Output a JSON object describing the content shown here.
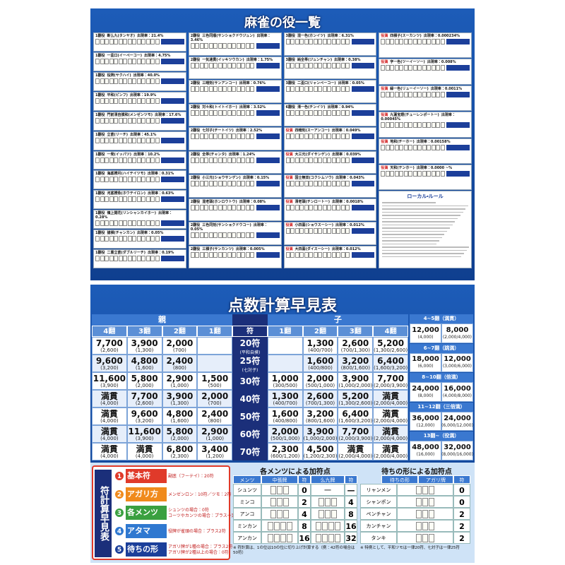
{
  "yaku_sheet": {
    "title": "麻雀の役一覧",
    "columns": [
      [
        {
          "han": "1翻役",
          "name": "断么九(タンヤオ)",
          "rate": "出現率：21.4%"
        },
        {
          "han": "1翻役",
          "name": "一盃口(イーペーコー)",
          "rate": "出現率：4.75%"
        },
        {
          "han": "1翻役",
          "name": "役牌(ヤクハイ)",
          "rate": "出現率：40.0%"
        },
        {
          "han": "1翻役",
          "name": "平和(ピンフ)",
          "rate": "出現率：19.9%"
        },
        {
          "han": "1翻役",
          "name": "門前清自摸和(メンゼンツモ)",
          "rate": "出現率：17.6%"
        },
        {
          "han": "1翻役",
          "name": "立直(リーチ)",
          "rate": "出現率：45.1%"
        },
        {
          "han": "1翻役",
          "name": "一発(イッパツ)",
          "rate": "出現率：10.2%"
        },
        {
          "han": "1翻役",
          "name": "海底撈月(ハイテイツモ)",
          "rate": "出現率：0.31%"
        },
        {
          "han": "1翻役",
          "name": "河底撈魚(ホウテイロン)",
          "rate": "出現率：0.63%"
        },
        {
          "han": "1翻役",
          "name": "嶺上開花(リンシャンカイホー)",
          "rate": "出現率：0.28%"
        },
        {
          "han": "1翻役",
          "name": "搶槓(チャンカン)",
          "rate": "出現率：0.05%"
        },
        {
          "han": "1翻役",
          "name": "二重立直(ダブルリーチ)",
          "rate": "出現率：0.19%"
        }
      ],
      [
        {
          "han": "2翻役",
          "name": "三色同順(サンショクドウジュン)",
          "rate": "出現率：3.46%"
        },
        {
          "han": "2翻役",
          "name": "一気通貫(イッキツウカン)",
          "rate": "出現率：1.75%"
        },
        {
          "han": "2翻役",
          "name": "三暗刻(サンアンコー)",
          "rate": "出現率：0.76%"
        },
        {
          "han": "2翻役",
          "name": "対々和(トイトイホー)",
          "rate": "出現率：3.52%"
        },
        {
          "han": "2翻役",
          "name": "七対子(チートイツ)",
          "rate": "出現率：2.52%"
        },
        {
          "han": "2翻役",
          "name": "全帯(チャンタ)",
          "rate": "出現率：1.24%"
        },
        {
          "han": "2翻役",
          "name": "小三元(ショウサンゲン)",
          "rate": "出現率：0.15%"
        },
        {
          "han": "2翻役",
          "name": "混老頭(ホンロウトウ)",
          "rate": "出現率：0.08%"
        },
        {
          "han": "2翻役",
          "name": "三色同刻(サンショクドウコー)",
          "rate": "出現率：0.05%"
        },
        {
          "han": "2翻役",
          "name": "三槓子(サンカンツ)",
          "rate": "出現率：0.005%"
        }
      ],
      [
        {
          "han": "3翻役",
          "name": "混一色(ホンイツ)",
          "rate": "出現率：6.31%"
        },
        {
          "han": "3翻役",
          "name": "純全帯(ジュンチャン)",
          "rate": "出現率：0.38%"
        },
        {
          "han": "3翻役",
          "name": "二盃口(リャンペーコー)",
          "rate": "出現率：0.05%"
        },
        {
          "han": "6翻役",
          "name": "清一色(チンイツ)",
          "rate": "出現率：0.94%"
        },
        {
          "han": "役満",
          "name": "四暗刻(スーアンコー)",
          "rate": "出現率：0.049%"
        },
        {
          "han": "役満",
          "name": "大三元(ダイサンゲン)",
          "rate": "出現率：0.039%"
        },
        {
          "han": "役満",
          "name": "国士無双(コクシムソウ)",
          "rate": "出現率：0.043%"
        },
        {
          "han": "役満",
          "name": "清老頭(チンロートー)",
          "rate": "出現率：0.0018%"
        },
        {
          "han": "役満",
          "name": "小四喜(ショウスーシー)",
          "rate": "出現率：0.012%"
        },
        {
          "han": "役満",
          "name": "大四喜(ダイスーシー)",
          "rate": "出現率：0.012%"
        }
      ],
      [
        {
          "han": "役満",
          "name": "四槓子(スーカンツ)",
          "rate": "出現率：0.000234%"
        },
        {
          "han": "役満",
          "name": "字一色(ツーイーソー)",
          "rate": "出現率：0.008%"
        },
        {
          "han": "役満",
          "name": "緑一色(リューイーソー)",
          "rate": "出現率：0.0011%"
        },
        {
          "han": "役満",
          "name": "九蓮宝燈(チューレンポートー)",
          "rate": "出現率：0.00045%"
        },
        {
          "han": "役満",
          "name": "地和(チーホー)",
          "rate": "出現率：0.00158%"
        },
        {
          "han": "役満",
          "name": "天和(テンホー)",
          "rate": "出現率：0.0000 ~%"
        }
      ]
    ],
    "local_rule_title": "ローカル・ルール"
  },
  "score_sheet": {
    "title": "点数計算早見表",
    "dealer": "親",
    "non_dealer": "子",
    "fu_header": "符",
    "han_headers_dealer": [
      "4翻",
      "3翻",
      "2翻",
      "1翻"
    ],
    "han_headers_non_dealer": [
      "1翻",
      "2翻",
      "3翻",
      "4翻"
    ],
    "rows": [
      {
        "fu": "20符",
        "fu_note": "(平和自摸)",
        "dealer": [
          {
            "score": "7,700",
            "detail": "(2,600)"
          },
          {
            "score": "3,900",
            "detail": "(1,300)"
          },
          {
            "score": "2,000",
            "detail": "(700)"
          },
          null
        ],
        "non_dealer": [
          null,
          {
            "score": "1,300",
            "detail": "(400/700)"
          },
          {
            "score": "2,600",
            "detail": "(700/1,300)"
          },
          {
            "score": "5,200",
            "detail": "(1,300/2,600)"
          }
        ]
      },
      {
        "fu": "25符",
        "fu_note": "(七対子)",
        "dealer": [
          {
            "score": "9,600",
            "detail": "(3,200)"
          },
          {
            "score": "4,800",
            "detail": "(1,600)"
          },
          {
            "score": "2,400",
            "detail": "(800)"
          },
          null
        ],
        "non_dealer": [
          null,
          {
            "score": "1,600",
            "detail": "(400/800)"
          },
          {
            "score": "3,200",
            "detail": "(800/1,600)"
          },
          {
            "score": "6,400",
            "detail": "(1,600/3,200)"
          }
        ]
      },
      {
        "fu": "30符",
        "dealer": [
          {
            "score": "11,600",
            "detail": "(3,900)"
          },
          {
            "score": "5,800",
            "detail": "(2,000)"
          },
          {
            "score": "2,900",
            "detail": "(1,000)"
          },
          {
            "score": "1,500",
            "detail": "(500)"
          }
        ],
        "non_dealer": [
          {
            "score": "1,000",
            "detail": "(300/500)"
          },
          {
            "score": "2,000",
            "detail": "(500/1,000)"
          },
          {
            "score": "3,900",
            "detail": "(1,000/2,000)"
          },
          {
            "score": "7,700",
            "detail": "(2,000/3,900)"
          }
        ]
      },
      {
        "fu": "40符",
        "dealer": [
          {
            "score": "満貫",
            "detail": "(4,000)"
          },
          {
            "score": "7,700",
            "detail": "(2,600)"
          },
          {
            "score": "3,900",
            "detail": "(1,300)"
          },
          {
            "score": "2,000",
            "detail": "(700)"
          }
        ],
        "non_dealer": [
          {
            "score": "1,300",
            "detail": "(400/700)"
          },
          {
            "score": "2,600",
            "detail": "(700/1,300)"
          },
          {
            "score": "5,200",
            "detail": "(1,300/2,600)"
          },
          {
            "score": "満貫",
            "detail": "(2,000/4,000)"
          }
        ]
      },
      {
        "fu": "50符",
        "dealer": [
          {
            "score": "満貫",
            "detail": "(4,000)"
          },
          {
            "score": "9,600",
            "detail": "(3,200)"
          },
          {
            "score": "4,800",
            "detail": "(1,600)"
          },
          {
            "score": "2,400",
            "detail": "(800)"
          }
        ],
        "non_dealer": [
          {
            "score": "1,600",
            "detail": "(400/800)"
          },
          {
            "score": "3,200",
            "detail": "(800/1,600)"
          },
          {
            "score": "6,400",
            "detail": "(1,600/3,200)"
          },
          {
            "score": "満貫",
            "detail": "(2,000/4,000)"
          }
        ]
      },
      {
        "fu": "60符",
        "dealer": [
          {
            "score": "満貫",
            "detail": "(4,000)"
          },
          {
            "score": "11,600",
            "detail": "(3,900)"
          },
          {
            "score": "5,800",
            "detail": "(2,000)"
          },
          {
            "score": "2,900",
            "detail": "(1,000)"
          }
        ],
        "non_dealer": [
          {
            "score": "2,000",
            "detail": "(500/1,000)"
          },
          {
            "score": "3,900",
            "detail": "(1,000/2,000)"
          },
          {
            "score": "7,700",
            "detail": "(2,000/3,900)"
          },
          {
            "score": "満貫",
            "detail": "(2,000/4,000)"
          }
        ]
      },
      {
        "fu": "70符",
        "dealer": [
          {
            "score": "満貫",
            "detail": "(4,000)"
          },
          {
            "score": "満貫",
            "detail": "(4,000)"
          },
          {
            "score": "6,800",
            "detail": "(2,300)"
          },
          {
            "score": "3,400",
            "detail": "(1,200)"
          }
        ],
        "non_dealer": [
          {
            "score": "2,300",
            "detail": "(600/1,200)"
          },
          {
            "score": "4,500",
            "detail": "(1,200/2,300)"
          },
          {
            "score": "満貫",
            "detail": "(2,000/4,000)"
          },
          {
            "score": "満貫",
            "detail": "(2,000/4,000)"
          }
        ]
      }
    ],
    "limits": [
      {
        "label": "4~5翻（満貫）",
        "dealer": {
          "score": "12,000",
          "detail": "(4,000)"
        },
        "non_dealer": {
          "score": "8,000",
          "detail": "(2,000/4,000)"
        }
      },
      {
        "label": "6~7翻（跳満）",
        "dealer": {
          "score": "18,000",
          "detail": "(6,000)"
        },
        "non_dealer": {
          "score": "12,000",
          "detail": "(3,000/6,000)"
        }
      },
      {
        "label": "8~10翻（倍満）",
        "dealer": {
          "score": "24,000",
          "detail": "(8,000)"
        },
        "non_dealer": {
          "score": "16,000",
          "detail": "(4,000/8,000)"
        }
      },
      {
        "label": "11~12翻（三倍満）",
        "dealer": {
          "score": "36,000",
          "detail": "(12,000)"
        },
        "non_dealer": {
          "score": "24,000",
          "detail": "(6,000/12,000)"
        }
      },
      {
        "label": "13翻~（役満）",
        "dealer": {
          "score": "48,000",
          "detail": "(16,000)"
        },
        "non_dealer": {
          "score": "32,000",
          "detail": "(8,000/16,000)"
        }
      }
    ]
  },
  "fu_guide": {
    "title": "符計算早見表",
    "steps": [
      {
        "num": "1",
        "name": "基本符",
        "desc": [
          "副底（フーテイ）：20符"
        ]
      },
      {
        "num": "2",
        "name": "アガリ方",
        "desc": [
          "メンゼンロン：10符／ツモ：2符"
        ]
      },
      {
        "num": "3",
        "name": "各メンツ",
        "desc": [
          "シュンツの場合：0符",
          "コーツやカンツの場合：プラス一定符"
        ]
      },
      {
        "num": "4",
        "name": "アタマ",
        "desc": [
          "役牌が雀頭の場合：プラス2符"
        ]
      },
      {
        "num": "5",
        "name": "待ちの形",
        "desc": [
          "アガリ牌が1種の場合：プラス2符",
          "アガリ牌が2種以上の場合：0符"
        ]
      }
    ]
  },
  "meld_table": {
    "title": "各メンツによる加符点",
    "headers": [
      "メンツ",
      "中張牌",
      "符",
      "么九牌",
      "符"
    ],
    "rows": [
      {
        "name": "シュンツ",
        "simple_fu": 0,
        "terminal_tiles": "一",
        "terminal_fu": "—"
      },
      {
        "name": "ミンコ",
        "simple_fu": 2,
        "terminal_fu": 4
      },
      {
        "name": "アンコ",
        "simple_fu": 4,
        "terminal_fu": 8
      },
      {
        "name": "ミンカン",
        "simple_fu": 8,
        "terminal_fu": 16
      },
      {
        "name": "アンカン",
        "simple_fu": 16,
        "terminal_fu": 32
      }
    ],
    "note": "※ 符計算は、1の位は10の位に切り上げ計算する（例：42符の場合は50符）"
  },
  "wait_table": {
    "title": "待ちの形による加符点",
    "headers": [
      "待ちの形",
      "アガリ牌",
      "符"
    ],
    "rows": [
      {
        "name": "リャンメン",
        "fu": 0
      },
      {
        "name": "シャンポン",
        "fu": 0
      },
      {
        "name": "ペンチャン",
        "fu": 2
      },
      {
        "name": "カンチャン",
        "fu": 2
      },
      {
        "name": "タンキ",
        "fu": 2
      }
    ],
    "note": "※ 特例として、平和ツモは一律20符、七対子は一律25符"
  }
}
